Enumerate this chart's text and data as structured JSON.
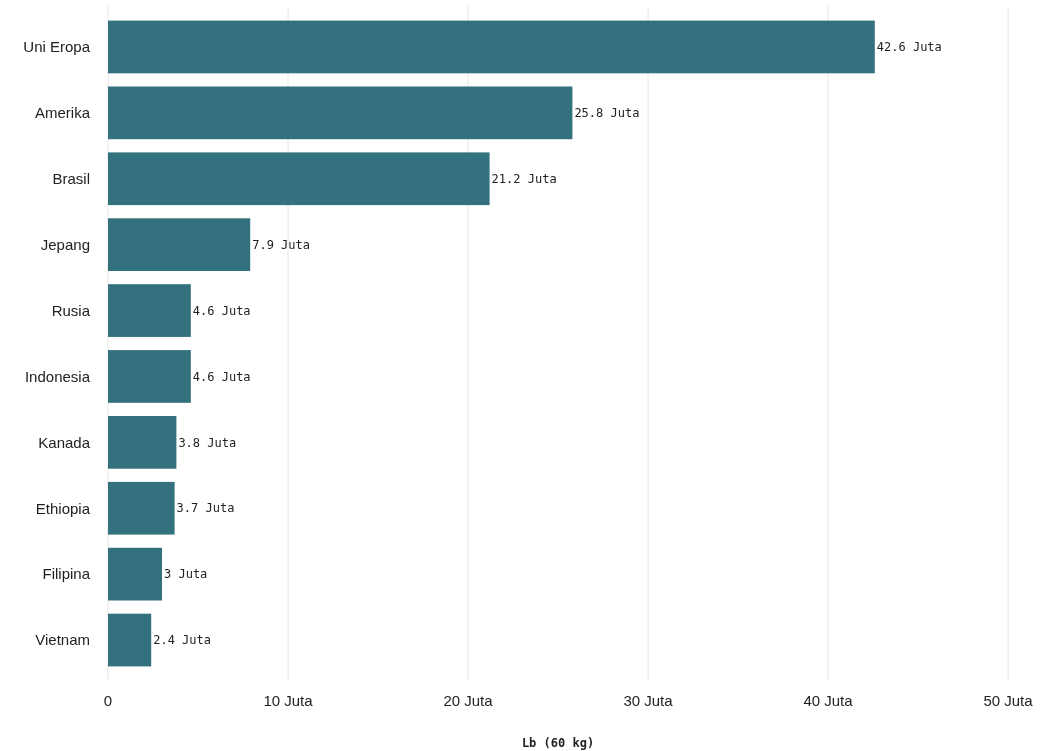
{
  "chart_data": {
    "type": "bar",
    "orientation": "horizontal",
    "categories": [
      "Uni Eropa",
      "Amerika",
      "Brasil",
      "Jepang",
      "Rusia",
      "Indonesia",
      "Kanada",
      "Ethiopia",
      "Filipina",
      "Vietnam"
    ],
    "values": [
      42.6,
      25.8,
      21.2,
      7.9,
      4.6,
      4.6,
      3.8,
      3.7,
      3,
      2.4
    ],
    "value_labels": [
      "42.6 Juta",
      "25.8 Juta",
      "21.2 Juta",
      "7.9 Juta",
      "4.6 Juta",
      "4.6 Juta",
      "3.8 Juta",
      "3.7 Juta",
      "3 Juta",
      "2.4 Juta"
    ],
    "color": "#33717f",
    "xlim": [
      0,
      50
    ],
    "xticks": [
      0,
      {
        "value": 10,
        "label": "10 Juta"
      },
      {
        "value": 20,
        "label": "20 Juta"
      },
      {
        "value": 30,
        "label": "30 Juta"
      },
      {
        "value": 40,
        "label": "40 Juta"
      },
      {
        "value": 50,
        "label": "50 Juta"
      }
    ],
    "xlabel": "Lb (60 kg)",
    "grid": "x"
  }
}
